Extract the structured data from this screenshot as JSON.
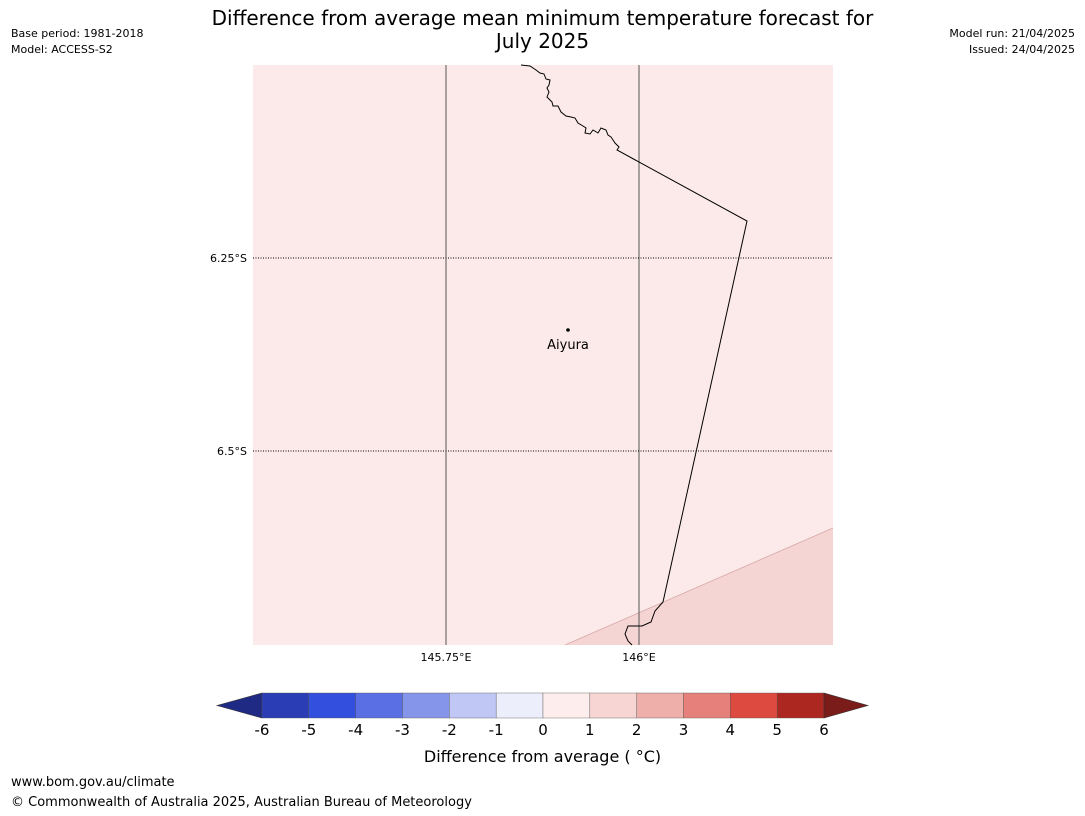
{
  "header": {
    "title_line1": "Difference from average mean minimum temperature forecast for",
    "title_line2": "July 2025",
    "base_period": "Base period: 1981-2018",
    "model": "Model: ACCESS-S2",
    "model_run": "Model run: 21/04/2025",
    "issued": "Issued: 24/04/2025"
  },
  "map": {
    "lat_labels": [
      "6.25°S",
      "6.5°S"
    ],
    "lon_labels": [
      "145.75°E",
      "146°E"
    ],
    "place": {
      "name": "Aiyura"
    },
    "colors": {
      "land_fill": "#fbeae9",
      "warmer_fill": "#f5d5d3",
      "border": "#000000",
      "graticule": "#555555"
    }
  },
  "colorbar": {
    "ticks": [
      "-6",
      "-5",
      "-4",
      "-3",
      "-2",
      "-1",
      "0",
      "1",
      "2",
      "3",
      "4",
      "5",
      "6"
    ],
    "colors": [
      "#1f2a85",
      "#2a3db5",
      "#3250dd",
      "#5b6fe4",
      "#8595ea",
      "#c0c7f4",
      "#eceefc",
      "#fdeeed",
      "#f7d5d3",
      "#eeaea9",
      "#e6807a",
      "#dd4a40",
      "#ad2721",
      "#7a1c1a"
    ],
    "label": "Difference from average ( °C)"
  },
  "footer": {
    "url": "www.bom.gov.au/climate",
    "copyright": "© Commonwealth of Australia 2025, Australian Bureau of Meteorology"
  }
}
